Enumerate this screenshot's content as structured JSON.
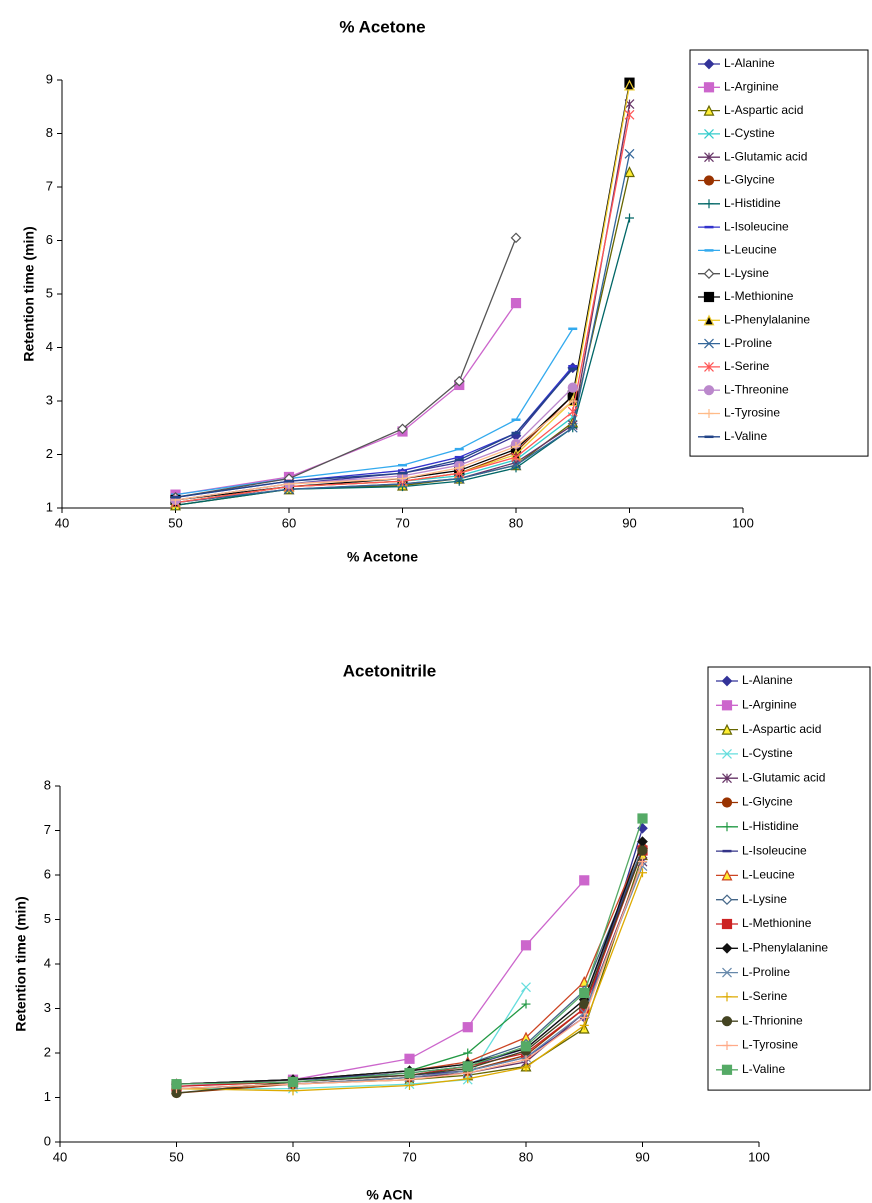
{
  "chart_data": [
    {
      "type": "line",
      "title": "% Acetone",
      "x_label": "% Acetone",
      "y_label": "Retention time (min)",
      "x": [
        50,
        60,
        70,
        75,
        80,
        85,
        90
      ],
      "xlim": [
        40,
        100
      ],
      "xticks": [
        40,
        50,
        60,
        70,
        80,
        90,
        100
      ],
      "ylim": [
        1,
        9
      ],
      "yticks": [
        1,
        2,
        3,
        4,
        5,
        6,
        7,
        8,
        9
      ],
      "grid": false,
      "legend": "right",
      "series": [
        {
          "name": "L-Alanine",
          "color": "#333399",
          "marker": "diamond",
          "values": [
            1.15,
            1.45,
            1.65,
            1.85,
            2.35,
            3.62,
            null
          ]
        },
        {
          "name": "L-Arginine",
          "color": "#cc66cc",
          "marker": "square",
          "values": [
            1.25,
            1.58,
            2.43,
            3.3,
            4.83,
            null,
            null
          ]
        },
        {
          "name": "L-Aspartic acid",
          "color": "#666600",
          "marker": "triangle",
          "values": [
            1.05,
            1.35,
            1.42,
            1.55,
            1.8,
            2.6,
            7.28
          ]
        },
        {
          "name": "L-Cystine",
          "color": "#33cccc",
          "marker": "x",
          "values": [
            1.1,
            1.4,
            1.5,
            1.6,
            1.9,
            2.7,
            null
          ]
        },
        {
          "name": "L-Glutamic acid",
          "color": "#663366",
          "marker": "star",
          "values": [
            1.1,
            1.35,
            1.45,
            1.55,
            1.85,
            2.55,
            8.55
          ]
        },
        {
          "name": "L-Glycine",
          "color": "#993300",
          "marker": "circle",
          "values": [
            1.1,
            1.4,
            1.5,
            1.65,
            2.05,
            3.1,
            null
          ]
        },
        {
          "name": "L-Histidine",
          "color": "#006666",
          "marker": "plus",
          "values": [
            1.05,
            1.35,
            1.4,
            1.5,
            1.75,
            2.5,
            6.42
          ]
        },
        {
          "name": "L-Isoleucine",
          "color": "#3333cc",
          "marker": "dash",
          "values": [
            1.2,
            1.5,
            1.7,
            1.95,
            2.4,
            3.65,
            null
          ]
        },
        {
          "name": "L-Leucine",
          "color": "#33aaee",
          "marker": "dash",
          "values": [
            1.25,
            1.55,
            1.8,
            2.1,
            2.65,
            4.35,
            null
          ]
        },
        {
          "name": "L-Lysine",
          "color": "#555555",
          "marker": "diamond-open",
          "values": [
            1.2,
            1.55,
            2.48,
            3.37,
            6.05,
            null,
            null
          ]
        },
        {
          "name": "L-Methionine",
          "color": "#000000",
          "marker": "square",
          "values": [
            1.15,
            1.4,
            1.55,
            1.7,
            2.1,
            3.1,
            8.95
          ]
        },
        {
          "name": "L-Phenylalanine",
          "color": "#eecc33",
          "marker": "triangle-black",
          "values": [
            1.1,
            1.4,
            1.5,
            1.65,
            2.0,
            3.0,
            8.9
          ]
        },
        {
          "name": "L-Proline",
          "color": "#336699",
          "marker": "x",
          "values": [
            1.1,
            1.35,
            1.45,
            1.55,
            1.8,
            2.5,
            7.62
          ]
        },
        {
          "name": "L-Serine",
          "color": "#ff5555",
          "marker": "star",
          "values": [
            1.1,
            1.4,
            1.5,
            1.65,
            1.95,
            2.8,
            8.35
          ]
        },
        {
          "name": "L-Threonine",
          "color": "#bb88cc",
          "marker": "circle",
          "values": [
            1.15,
            1.45,
            1.6,
            1.8,
            2.2,
            3.25,
            null
          ]
        },
        {
          "name": "L-Tyrosine",
          "color": "#ffbb88",
          "marker": "plus",
          "values": [
            1.15,
            1.45,
            1.55,
            1.75,
            2.15,
            3.0,
            null
          ]
        },
        {
          "name": "L-Valine",
          "color": "#224488",
          "marker": "dash",
          "values": [
            1.2,
            1.5,
            1.65,
            1.9,
            2.4,
            3.6,
            null
          ]
        }
      ]
    },
    {
      "type": "line",
      "title": "Acetonitrile",
      "x_label": "% ACN",
      "y_label": "Retention time (min)",
      "x": [
        50,
        60,
        70,
        75,
        80,
        85,
        90
      ],
      "xlim": [
        40,
        100
      ],
      "xticks": [
        40,
        50,
        60,
        70,
        80,
        90,
        100
      ],
      "ylim": [
        0,
        8
      ],
      "yticks": [
        0,
        1,
        2,
        3,
        4,
        5,
        6,
        7,
        8
      ],
      "grid": false,
      "legend": "right",
      "series": [
        {
          "name": "L-Alanine",
          "color": "#333399",
          "marker": "diamond",
          "values": [
            1.3,
            1.4,
            1.5,
            1.6,
            1.9,
            2.8,
            7.05
          ]
        },
        {
          "name": "L-Arginine",
          "color": "#cc66cc",
          "marker": "square",
          "values": [
            1.25,
            1.4,
            1.87,
            2.58,
            4.42,
            5.88,
            null
          ]
        },
        {
          "name": "L-Aspartic acid",
          "color": "#666600",
          "marker": "triangle",
          "values": [
            1.2,
            1.3,
            1.4,
            1.5,
            1.7,
            2.55,
            6.45
          ]
        },
        {
          "name": "L-Cystine",
          "color": "#66dddd",
          "marker": "x",
          "values": [
            1.2,
            1.2,
            1.3,
            1.4,
            3.48,
            null,
            null
          ]
        },
        {
          "name": "L-Glutamic acid",
          "color": "#663366",
          "marker": "star",
          "values": [
            1.2,
            1.3,
            1.45,
            1.55,
            1.8,
            2.9,
            6.3
          ]
        },
        {
          "name": "L-Glycine",
          "color": "#993300",
          "marker": "circle",
          "values": [
            1.1,
            1.3,
            1.45,
            1.6,
            1.95,
            3.0,
            6.6
          ]
        },
        {
          "name": "L-Histidine",
          "color": "#229944",
          "marker": "plus",
          "values": [
            1.3,
            1.4,
            1.6,
            2.0,
            3.1,
            null,
            null
          ]
        },
        {
          "name": "L-Isoleucine",
          "color": "#333388",
          "marker": "dash",
          "values": [
            1.3,
            1.4,
            1.55,
            1.7,
            2.1,
            3.2,
            6.6
          ]
        },
        {
          "name": "L-Leucine",
          "color": "#cc4422",
          "marker": "triangle",
          "values": [
            1.3,
            1.4,
            1.6,
            1.8,
            2.35,
            3.6,
            6.7
          ]
        },
        {
          "name": "L-Lysine",
          "color": "#446688",
          "marker": "diamond-open",
          "values": [
            1.3,
            1.4,
            1.6,
            1.75,
            2.2,
            3.4,
            6.6
          ]
        },
        {
          "name": "L-Methionine",
          "color": "#cc2222",
          "marker": "square",
          "values": [
            1.25,
            1.35,
            1.5,
            1.7,
            2.0,
            3.0,
            6.55
          ]
        },
        {
          "name": "L-Phenylalanine",
          "color": "#111111",
          "marker": "diamond",
          "values": [
            1.3,
            1.4,
            1.6,
            1.75,
            2.1,
            3.2,
            6.75
          ]
        },
        {
          "name": "L-Proline",
          "color": "#6688aa",
          "marker": "x",
          "values": [
            1.2,
            1.3,
            1.45,
            1.6,
            1.9,
            2.9,
            6.2
          ]
        },
        {
          "name": "L-Serine",
          "color": "#ddaa00",
          "marker": "plus",
          "values": [
            1.2,
            1.15,
            1.27,
            1.42,
            1.68,
            2.62,
            6.05
          ]
        },
        {
          "name": "L-Thrionine",
          "color": "#444422",
          "marker": "circle",
          "values": [
            1.1,
            1.35,
            1.5,
            1.65,
            2.05,
            3.1,
            6.55
          ]
        },
        {
          "name": "L-Tyrosine",
          "color": "#ffaa88",
          "marker": "plus",
          "values": [
            1.2,
            1.3,
            1.4,
            1.55,
            1.85,
            2.8,
            6.3
          ]
        },
        {
          "name": "L-Valine",
          "color": "#55aa66",
          "marker": "square",
          "values": [
            1.3,
            1.35,
            1.55,
            1.7,
            2.15,
            3.35,
            7.27
          ]
        }
      ]
    }
  ]
}
